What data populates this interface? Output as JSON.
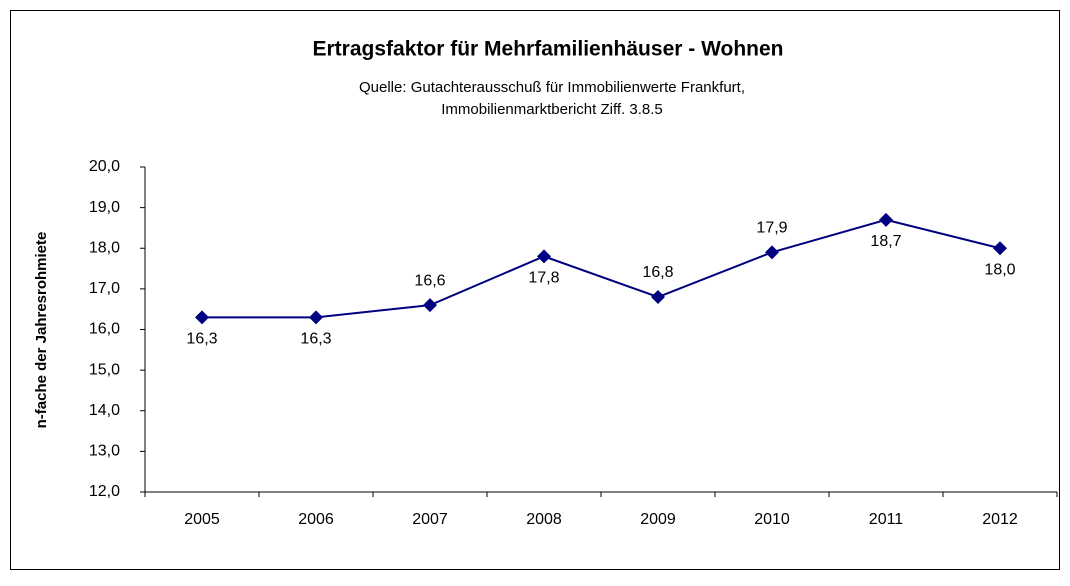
{
  "chart_data": {
    "type": "line",
    "title": "Ertragsfaktor für Mehrfamilienhäuser  - Wohnen",
    "subtitle": [
      "Quelle:  Gutachterausschuß  für Immobilienwerte  Frankfurt,",
      "Immobilienmarktbericht  Ziff.  3.8.5"
    ],
    "y_label": "n-fache  der Jahresrohmiete",
    "categories": [
      "2005",
      "2006",
      "2007",
      "2008",
      "2009",
      "2010",
      "2011",
      "2012"
    ],
    "values": [
      16.3,
      16.3,
      16.6,
      17.8,
      16.8,
      17.9,
      18.7,
      18.0
    ],
    "value_labels": [
      "16,3",
      "16,3",
      "16,6",
      "17,8",
      "16,8",
      "17,9",
      "18,7",
      "18,0"
    ],
    "color": "#000080",
    "ylim": [
      12,
      20
    ],
    "yticks": [
      {
        "value": 12,
        "label": "12,0"
      },
      {
        "value": 13,
        "label": "13,0"
      },
      {
        "value": 14,
        "label": "14,0"
      },
      {
        "value": 15,
        "label": "15,0"
      },
      {
        "value": 16,
        "label": "16,0"
      },
      {
        "value": 17,
        "label": "17,0"
      },
      {
        "value": 18,
        "label": "18,0"
      },
      {
        "value": 19,
        "label": "19,0"
      },
      {
        "value": 20,
        "label": "20,0"
      }
    ],
    "grid": false
  }
}
